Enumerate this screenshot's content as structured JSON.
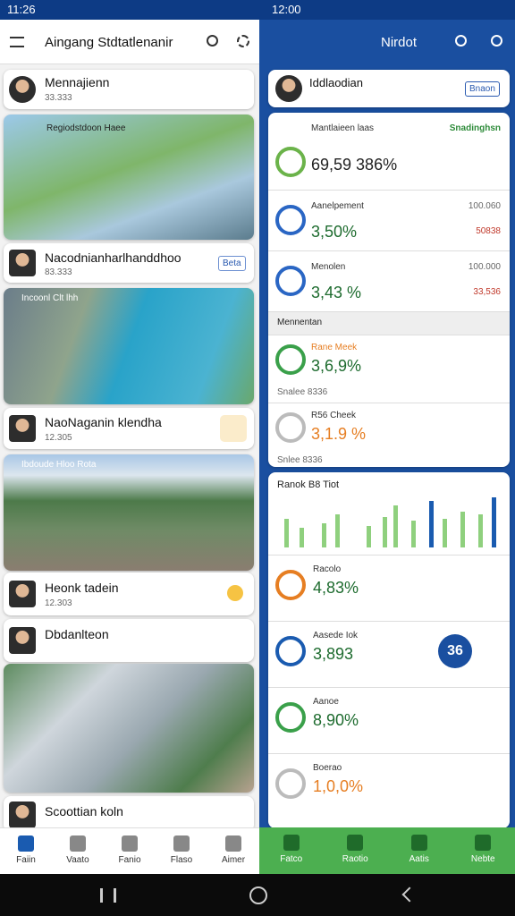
{
  "status": {
    "left_time": "11:26",
    "right_time": "12:00"
  },
  "left": {
    "title": "Aingang Stdtatlenanir",
    "profile": {
      "name": "Mennajienn",
      "sub": "33.333"
    },
    "map_caption": "Regiodstdoon Haee",
    "item1": {
      "name": "Nacodnianharlhanddhoo",
      "sub": "83.333",
      "badge": "Beta"
    },
    "coast_caption": "Incoonl Clt lhh",
    "item2": {
      "name": "NaoNaganin klendha",
      "sub": "12.305"
    },
    "city_caption": "Ibdoude Hloo Rota",
    "item3": {
      "name": "Heonk tadein",
      "sub": "12.303"
    },
    "item4": {
      "name": "Dbdanlteon"
    },
    "item5": {
      "name": "Scoottian koln"
    },
    "nav": [
      "Faiin",
      "Vaato",
      "Fanio",
      "Flaso",
      "Aimer"
    ]
  },
  "right": {
    "title": "Nirdot",
    "profile": {
      "name": "Iddlaodian",
      "button": "Bnaon"
    },
    "stats": [
      {
        "label": "Mantlaieen laas",
        "value": "69,59 386%",
        "side": "Snadinghsn"
      },
      {
        "label": "Aanelpement",
        "value": "3,50%",
        "side": "100.060",
        "tag": "50838"
      },
      {
        "label": "Menolen",
        "value": "3,43 %",
        "side": "100.000",
        "tag": "33,536"
      }
    ],
    "section": "Mennentan",
    "stats2": [
      {
        "label": "Rane Meek",
        "value": "3,6,9%",
        "foot": "Snalee 8336"
      },
      {
        "label": "R56 Cheek",
        "value": "3,1.9 %",
        "foot": "Snlee 8336"
      }
    ],
    "chart_title": "Ranok B8 Tiot",
    "stats3": [
      {
        "label": "Racolo",
        "value": "4,83%"
      },
      {
        "label": "Aasede Iok",
        "value": "3,893",
        "badge": "36"
      },
      {
        "label": "Aanoe",
        "value": "8,90%"
      },
      {
        "label": "Boerao",
        "value": "1,0,0%"
      }
    ],
    "nav": [
      "Fatco",
      "Raotio",
      "Aatis",
      "Nebte"
    ]
  }
}
